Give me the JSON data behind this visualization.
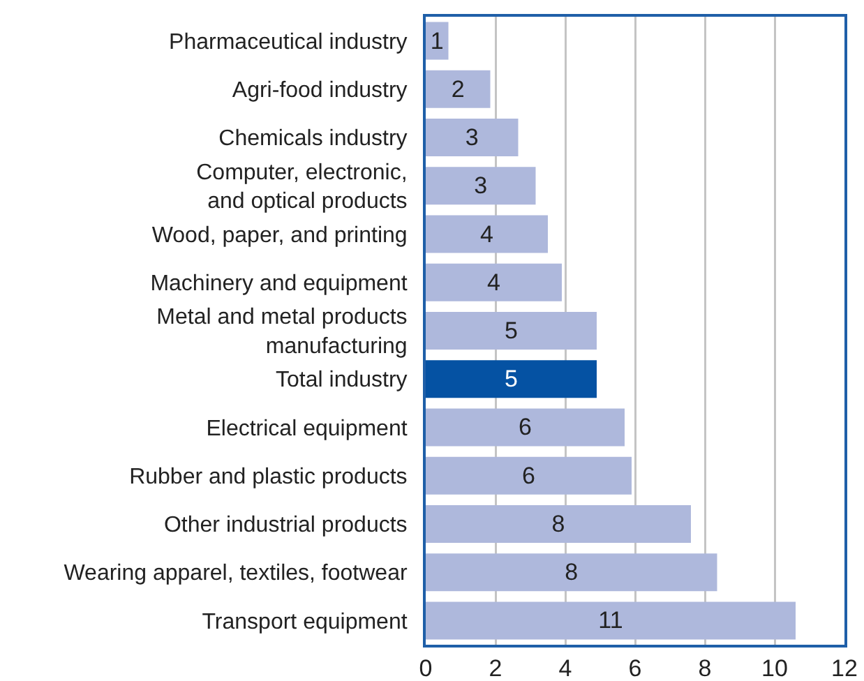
{
  "chart_data": {
    "type": "bar",
    "orientation": "horizontal",
    "categories": [
      "Pharmaceutical industry",
      "Agri-food industry",
      "Chemicals industry",
      "Computer, electronic,\nand optical products",
      "Wood, paper, and printing",
      "Machinery and equipment",
      "Metal and metal products\nmanufacturing",
      "Total industry",
      "Electrical equipment",
      "Rubber and plastic products",
      "Other industrial products",
      "Wearing apparel, textiles, footwear",
      "Transport equipment"
    ],
    "values": [
      0.65,
      1.85,
      2.65,
      3.15,
      3.5,
      3.9,
      4.9,
      4.9,
      5.7,
      5.9,
      7.6,
      8.35,
      10.6
    ],
    "value_labels": [
      "1",
      "2",
      "3",
      "3",
      "4",
      "4",
      "5",
      "5",
      "6",
      "6",
      "8",
      "8",
      "11"
    ],
    "colors": [
      "#aeb8dc",
      "#aeb8dc",
      "#aeb8dc",
      "#aeb8dc",
      "#aeb8dc",
      "#aeb8dc",
      "#aeb8dc",
      "#0552a3",
      "#aeb8dc",
      "#aeb8dc",
      "#aeb8dc",
      "#aeb8dc",
      "#aeb8dc"
    ],
    "xlim": [
      0,
      12
    ],
    "xticks": [
      0,
      2,
      4,
      6,
      8,
      10,
      12
    ],
    "grid": "x"
  }
}
